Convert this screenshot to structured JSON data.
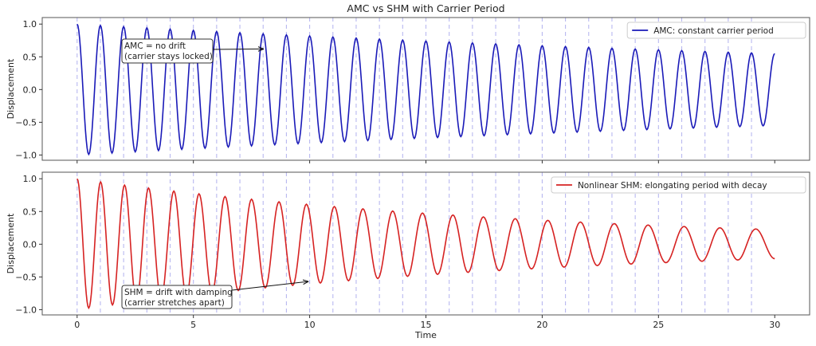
{
  "chart_data": [
    {
      "type": "line",
      "title": "AMC vs SHM with Carrier Period",
      "xlabel": "",
      "ylabel": "Displacement",
      "xlim": [
        -1.5,
        31.5
      ],
      "ylim": [
        -1.08,
        1.1
      ],
      "yticks": [
        "1.0",
        "0.5",
        "0.0",
        "−0.5",
        "−1.0"
      ],
      "ytick_values": [
        1.0,
        0.5,
        0.0,
        -0.5,
        -1.0
      ],
      "xtick_values": [
        0,
        5,
        10,
        15,
        20,
        25,
        30
      ],
      "grid": false,
      "vlines": {
        "style": "dashed",
        "color": "#b8b8f0",
        "from": 0,
        "to": 29,
        "step": 1
      },
      "legend": {
        "placement": "top-right",
        "entries": [
          "AMC: constant carrier period"
        ]
      },
      "annotation": {
        "line1": "AMC = no drift",
        "line2": "(carrier stays locked)",
        "arrow_target": [
          8,
          0.62
        ]
      },
      "series": [
        {
          "name": "AMC: constant carrier period",
          "color": "#1a1ab8",
          "extrema_x": [
            0,
            0.5,
            1,
            1.5,
            2,
            2.5,
            3,
            3.5,
            4,
            4.5,
            5,
            5.5,
            6,
            6.5,
            7,
            7.5,
            8,
            8.5,
            9,
            9.5,
            10,
            10.5,
            11,
            11.5,
            12,
            12.5,
            13,
            13.5,
            14,
            14.5,
            15,
            15.5,
            16,
            16.5,
            17,
            17.5,
            18,
            18.5,
            19,
            19.5,
            20,
            20.5,
            21,
            21.5,
            22,
            22.5,
            23,
            23.5,
            24,
            24.5,
            25,
            25.5,
            26,
            26.5,
            27,
            27.5,
            28,
            28.5,
            29,
            29.5,
            30
          ],
          "extrema_y": [
            1,
            -0.99,
            0.98,
            -0.97,
            0.961,
            -0.951,
            0.942,
            -0.932,
            0.923,
            -0.914,
            0.905,
            -0.896,
            0.887,
            -0.878,
            0.869,
            -0.861,
            0.852,
            -0.844,
            0.835,
            -0.827,
            0.819,
            -0.811,
            0.803,
            -0.795,
            0.787,
            -0.779,
            0.771,
            -0.763,
            0.756,
            -0.748,
            0.741,
            -0.733,
            0.726,
            -0.719,
            0.712,
            -0.705,
            0.698,
            -0.691,
            0.684,
            -0.677,
            0.67,
            -0.664,
            0.657,
            -0.651,
            0.644,
            -0.638,
            0.631,
            -0.625,
            0.619,
            -0.613,
            0.607,
            -0.601,
            0.595,
            -0.589,
            0.583,
            -0.577,
            0.571,
            -0.566,
            0.56,
            -0.554,
            0.549
          ]
        }
      ]
    },
    {
      "type": "line",
      "title": "",
      "xlabel": "Time",
      "ylabel": "Displacement",
      "xlim": [
        -1.5,
        31.5
      ],
      "ylim": [
        -1.08,
        1.1
      ],
      "yticks": [
        "1.0",
        "0.5",
        "0.0",
        "−0.5",
        "−1.0"
      ],
      "ytick_values": [
        1.0,
        0.5,
        0.0,
        -0.5,
        -1.0
      ],
      "xticks": [
        "0",
        "5",
        "10",
        "15",
        "20",
        "25",
        "30"
      ],
      "xtick_values": [
        0,
        5,
        10,
        15,
        20,
        25,
        30
      ],
      "grid": false,
      "vlines": {
        "style": "dashed",
        "color": "#b8b8f0",
        "from": 0,
        "to": 29,
        "step": 1
      },
      "legend": {
        "placement": "top-right",
        "entries": [
          "Nonlinear SHM: elongating period with decay"
        ]
      },
      "annotation": {
        "line1": "SHM = drift with damping",
        "line2": "(carrier stretches apart)",
        "arrow_target": [
          9.93,
          -0.57
        ]
      },
      "series": [
        {
          "name": "Nonlinear SHM: elongating period with decay",
          "color": "#d62222",
          "extrema_x": [
            0,
            0.5,
            1.01,
            1.52,
            2.04,
            2.55,
            3.07,
            3.61,
            4.16,
            4.7,
            5.24,
            5.8,
            6.36,
            6.93,
            7.5,
            8.09,
            8.68,
            9.27,
            9.86,
            10.46,
            11.06,
            11.67,
            12.29,
            12.93,
            13.57,
            14.21,
            14.85,
            15.5,
            16.16,
            16.81,
            17.47,
            18.15,
            18.84,
            19.54,
            20.24,
            20.94,
            21.64,
            22.37,
            23.1,
            23.82,
            24.55,
            25.32,
            26.1,
            26.87,
            27.64,
            28.41,
            29.18,
            30
          ],
          "extrema_y": [
            1,
            -0.975,
            0.951,
            -0.927,
            0.903,
            -0.88,
            0.858,
            -0.835,
            0.812,
            -0.791,
            0.77,
            -0.748,
            0.728,
            -0.707,
            0.687,
            -0.667,
            0.648,
            -0.629,
            0.611,
            -0.593,
            0.575,
            -0.558,
            0.541,
            -0.524,
            0.507,
            -0.491,
            0.476,
            -0.461,
            0.446,
            -0.431,
            0.417,
            -0.403,
            0.39,
            -0.377,
            0.364,
            -0.351,
            0.339,
            -0.327,
            0.315,
            -0.304,
            0.293,
            -0.282,
            0.271,
            -0.261,
            0.251,
            -0.242,
            0.233,
            -0.222
          ]
        }
      ]
    }
  ]
}
